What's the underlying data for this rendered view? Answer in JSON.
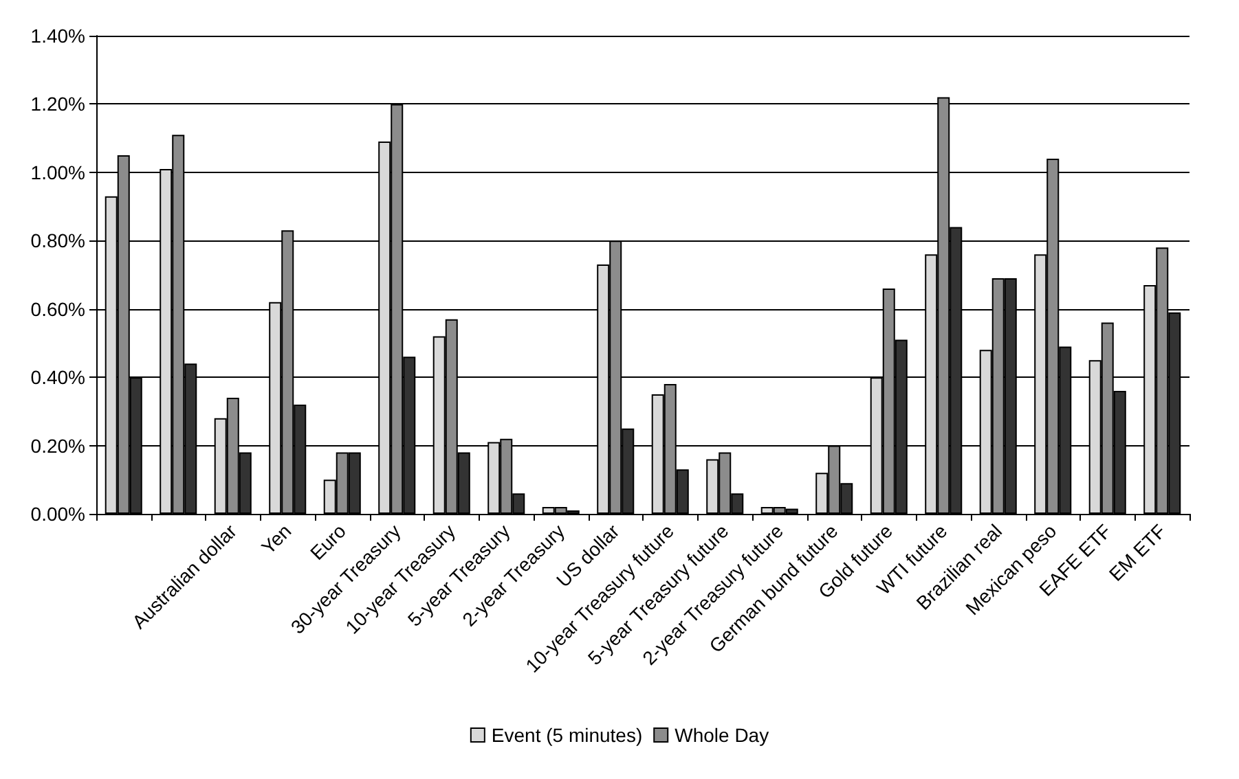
{
  "chart_data": {
    "type": "bar",
    "categories": [
      null,
      null,
      "Australian dollar",
      "Yen",
      "Euro",
      "30-year Treasury",
      "10-year Treasury",
      "5-year Treasury",
      "2-year Treasury",
      "US dollar",
      "10-year Treasury future",
      "5-year Treasury future",
      "2-year Treasury future",
      "German bund future",
      "Gold future",
      "WTI future",
      "Brazilian real",
      "Mexican peso",
      "EAFE ETF",
      "EM ETF"
    ],
    "series": [
      {
        "name": "Event (5 minutes)",
        "color": "#d9d9d9",
        "values": [
          0.93,
          1.01,
          0.28,
          0.62,
          0.1,
          1.09,
          0.52,
          0.21,
          0.02,
          0.73,
          0.35,
          0.16,
          0.02,
          0.12,
          0.4,
          0.76,
          0.48,
          0.76,
          0.45,
          0.67
        ]
      },
      {
        "name": "Whole Day",
        "color": "#8c8c8c",
        "values": [
          1.05,
          1.11,
          0.34,
          0.83,
          0.18,
          1.2,
          0.57,
          0.22,
          0.02,
          0.8,
          0.38,
          0.18,
          0.02,
          0.2,
          0.66,
          1.22,
          0.69,
          1.04,
          0.56,
          0.78
        ]
      },
      {
        "color": "#333333",
        "values": [
          0.4,
          0.44,
          0.18,
          0.32,
          0.18,
          0.46,
          0.18,
          0.06,
          0.01,
          0.25,
          0.13,
          0.06,
          0.015,
          0.09,
          0.51,
          0.84,
          0.69,
          0.49,
          0.36,
          0.59
        ]
      }
    ],
    "ylim": [
      0,
      1.4
    ],
    "yticks": [
      {
        "value": 0,
        "label": "0.00%"
      },
      {
        "value": 0.2,
        "label": "0.20%"
      },
      {
        "value": 0.4,
        "label": "0.40%"
      },
      {
        "value": 0.6,
        "label": "0.60%"
      },
      {
        "value": 0.8,
        "label": "0.80%"
      },
      {
        "value": 1,
        "label": "1.00%"
      },
      {
        "value": 1.2,
        "label": "1.20%"
      },
      {
        "value": 1.4,
        "label": "1.40%"
      }
    ],
    "grid": "y",
    "legend": "bottom"
  }
}
